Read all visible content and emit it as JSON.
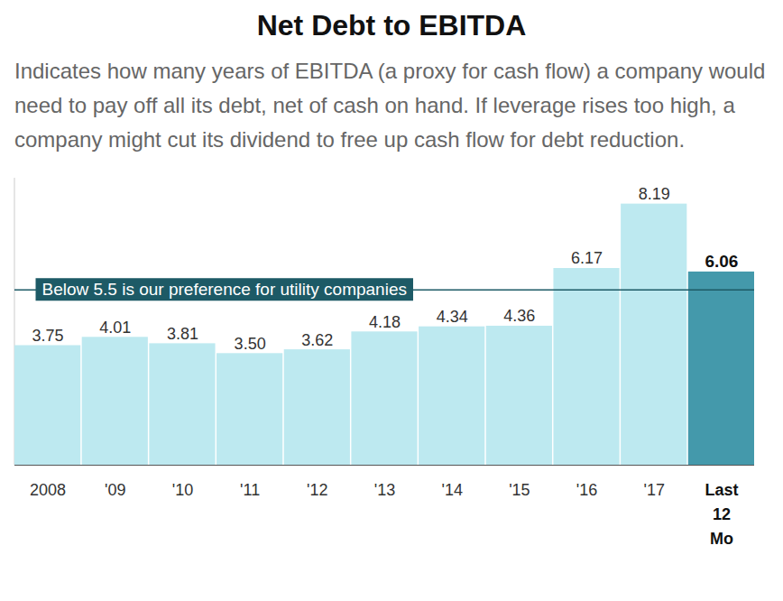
{
  "chart_data": {
    "type": "bar",
    "title": "Net Debt to EBITDA",
    "subtitle": "Indicates how many years of EBITDA (a proxy for cash flow) a company would need to pay off all its debt, net of cash on hand. If leverage rises too high, a company might cut its dividend to free up cash flow for debt reduction.",
    "categories": [
      "2008",
      "'09",
      "'10",
      "'11",
      "'12",
      "'13",
      "'14",
      "'15",
      "'16",
      "'17",
      "Last 12 Mo"
    ],
    "values": [
      3.75,
      4.01,
      3.81,
      3.5,
      3.62,
      4.18,
      4.34,
      4.36,
      6.17,
      8.19,
      6.06
    ],
    "value_labels": [
      "3.75",
      "4.01",
      "3.81",
      "3.50",
      "3.62",
      "4.18",
      "4.34",
      "4.36",
      "6.17",
      "8.19",
      "6.06"
    ],
    "colors": [
      "#bde9f0",
      "#bde9f0",
      "#bde9f0",
      "#bde9f0",
      "#bde9f0",
      "#bde9f0",
      "#bde9f0",
      "#bde9f0",
      "#bde9f0",
      "#bde9f0",
      "#4499ab"
    ],
    "ylim": [
      0,
      9
    ],
    "yticks": [],
    "tick_labels": "x",
    "data_labels": true,
    "annotations": [
      {
        "y": 5.5,
        "text": "Below 5.5 is our preference for utility companies"
      }
    ]
  }
}
